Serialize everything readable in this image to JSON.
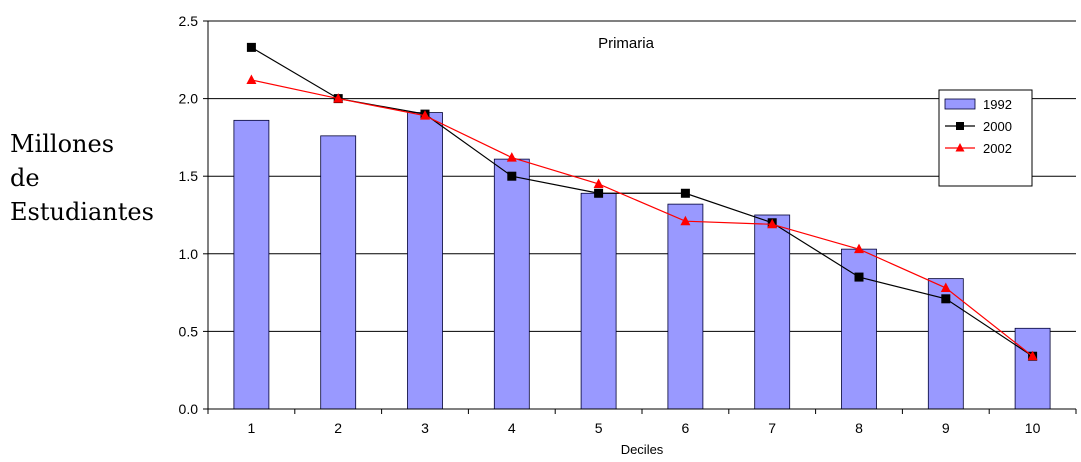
{
  "chart_data": {
    "type": "bar",
    "title": "Primaria",
    "xlabel": "Deciles",
    "ylabel_lines": [
      "Millones",
      "de",
      "Estudiantes"
    ],
    "categories": [
      "1",
      "2",
      "3",
      "4",
      "5",
      "6",
      "7",
      "8",
      "9",
      "10"
    ],
    "ylim": [
      0,
      2.5
    ],
    "yticks": [
      "0.0",
      "0.5",
      "1.0",
      "1.5",
      "2.0",
      "2.5"
    ],
    "grid": true,
    "legend_position": "right",
    "series": [
      {
        "name": "1992",
        "kind": "bar",
        "color": "#9999ff",
        "values": [
          1.86,
          1.76,
          1.91,
          1.61,
          1.39,
          1.32,
          1.25,
          1.03,
          0.84,
          0.52
        ]
      },
      {
        "name": "2000",
        "kind": "line",
        "marker": "square",
        "color": "#000000",
        "values": [
          2.33,
          2.0,
          1.9,
          1.5,
          1.39,
          1.39,
          1.2,
          0.85,
          0.71,
          0.34
        ]
      },
      {
        "name": "2002",
        "kind": "line",
        "marker": "triangle",
        "color": "#ff0000",
        "values": [
          2.12,
          2.0,
          1.89,
          1.62,
          1.45,
          1.21,
          1.19,
          1.03,
          0.78,
          0.34
        ]
      }
    ]
  }
}
